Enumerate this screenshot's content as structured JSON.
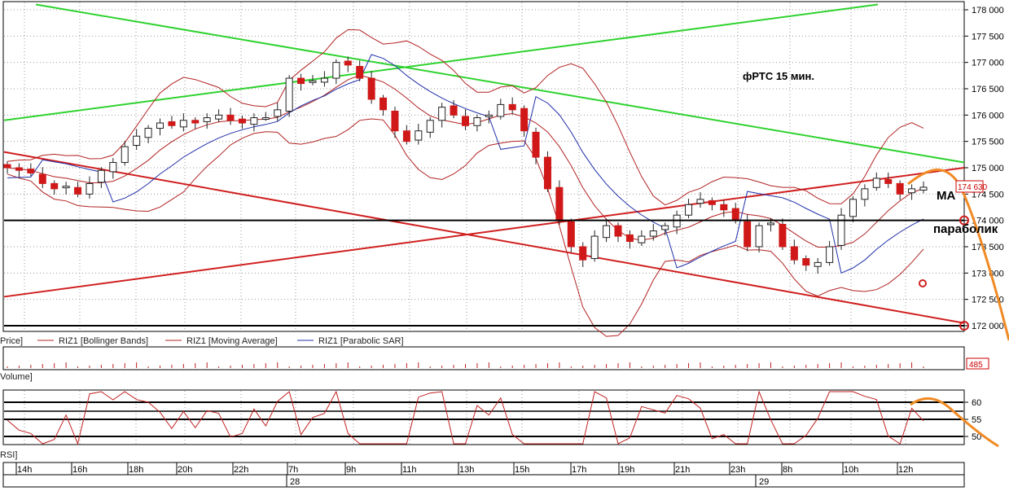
{
  "chart_data": {
    "type": "candlestick",
    "instrument_note": "фРТС   15 мин.",
    "annotations": {
      "ma": "MA",
      "parabolic": "параболик"
    },
    "price_panel": {
      "ylim": [
        172000,
        178000
      ],
      "y_ticks": [
        "178 000",
        "177 500",
        "177 000",
        "176 500",
        "176 000",
        "175 500",
        "175 000",
        "174 500",
        "174 000",
        "173 500",
        "173 000",
        "172 500",
        "172 000"
      ],
      "last_price_label": "174 630",
      "legend": [
        "Price]",
        "RIZ1 [Bollinger Bands]",
        "RIZ1 [Moving Average]",
        "RIZ1 [Parabolic SAR]"
      ],
      "horizontal_lines": [
        174000,
        172000
      ]
    },
    "volume_panel": {
      "label": "Volume]",
      "last_value_label": "485"
    },
    "rsi_panel": {
      "label": "RSI]",
      "y_ticks": [
        "60",
        "55",
        "50"
      ],
      "levels": [
        60,
        55,
        50
      ]
    },
    "x_axis": {
      "time_labels": [
        "14h",
        "16h",
        "18h",
        "20h",
        "22h",
        "7h",
        "9h",
        "11h",
        "13h",
        "15h",
        "17h",
        "19h",
        "21h",
        "23h",
        "8h",
        "10h",
        "12h"
      ],
      "date_labels": [
        "28",
        "29"
      ]
    },
    "close_path": [
      175000,
      174950,
      174900,
      174700,
      174600,
      174650,
      174500,
      174700,
      174950,
      175100,
      175400,
      175600,
      175750,
      175850,
      175800,
      175900,
      175850,
      175950,
      176000,
      175900,
      175850,
      175950,
      175950,
      176100,
      176700,
      176600,
      176650,
      176700,
      177000,
      176950,
      176700,
      176300,
      176100,
      175700,
      175500,
      175700,
      175900,
      176150,
      176000,
      175800,
      175950,
      176000,
      176200,
      176100,
      175700,
      175200,
      174600,
      174000,
      173500,
      173250,
      173700,
      173900,
      173700,
      173600,
      173700,
      173800,
      173900,
      174100,
      174300,
      174400,
      174300,
      174200,
      174000,
      173500,
      173900,
      173950,
      173500,
      173250,
      173150,
      173200,
      173500,
      174100,
      174400,
      174600,
      174800,
      174700,
      174500,
      174600,
      174630
    ]
  }
}
